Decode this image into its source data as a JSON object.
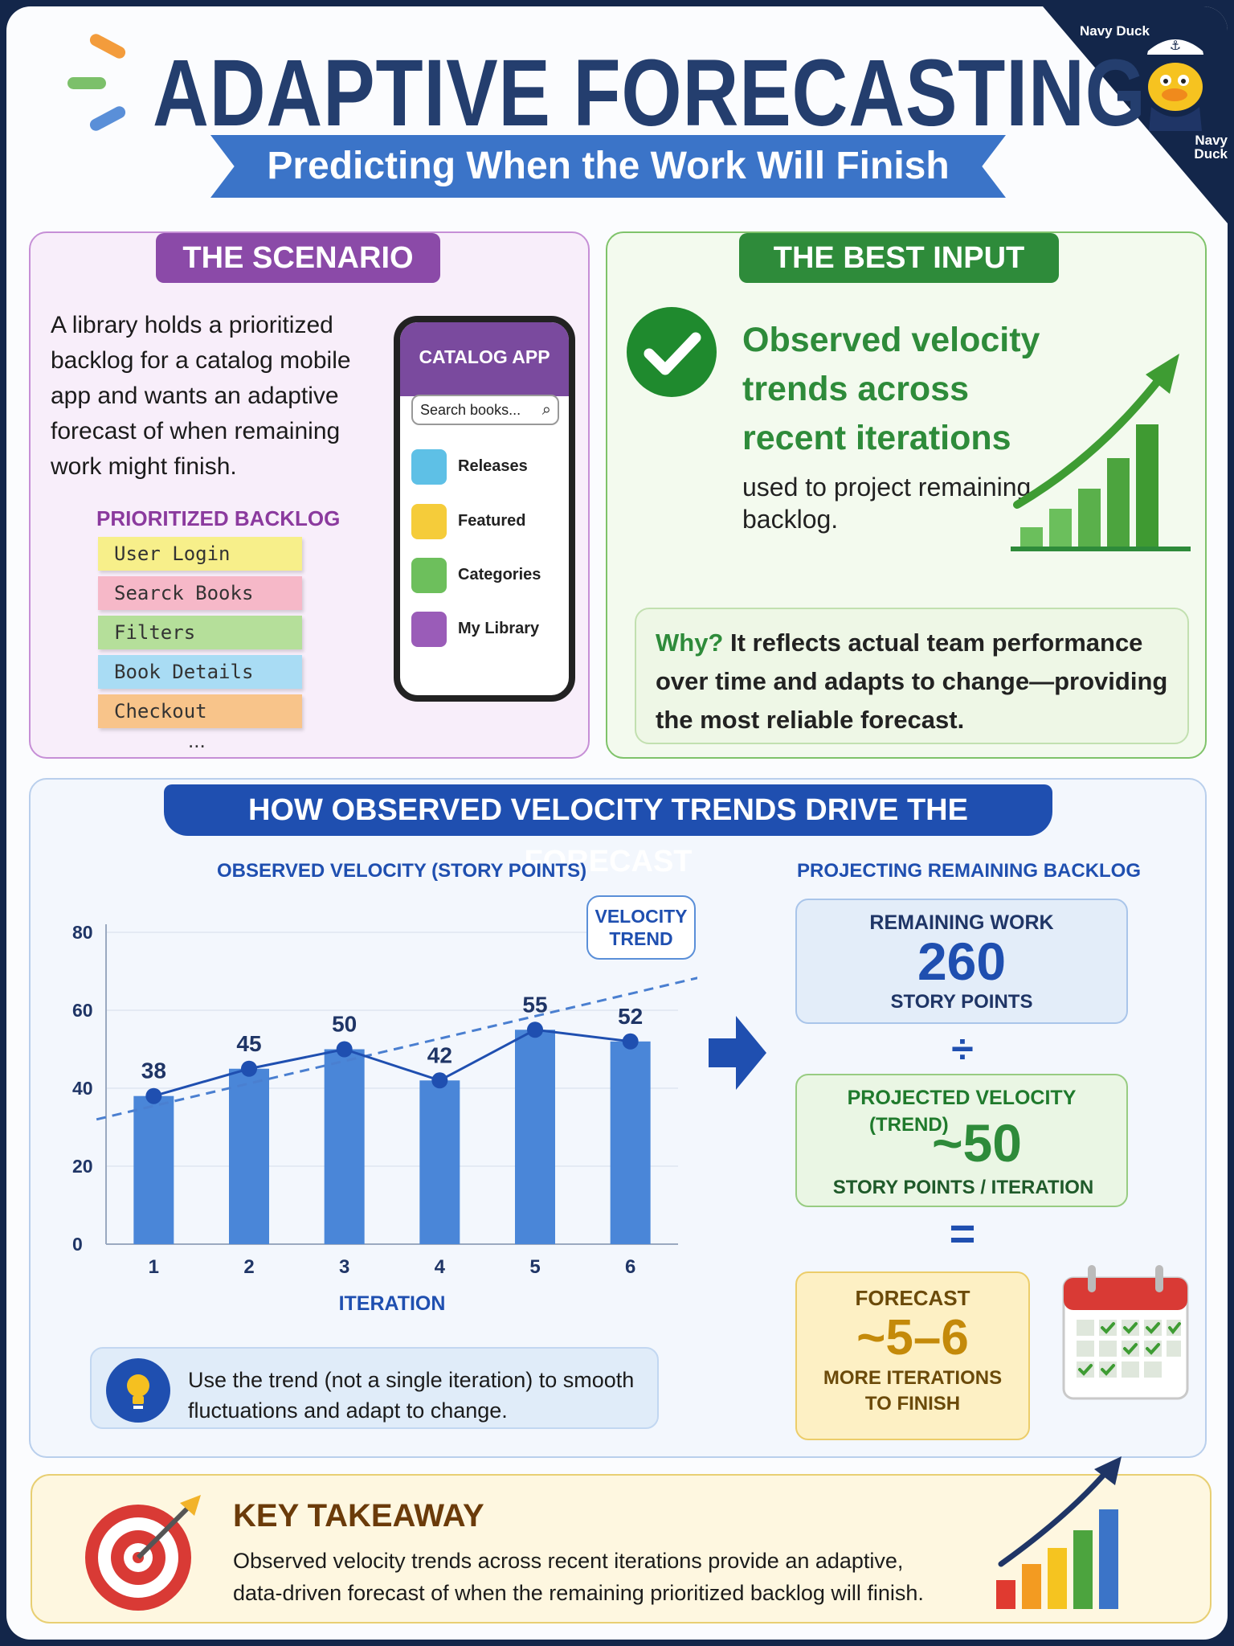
{
  "header": {
    "title": "ADAPTIVE FORECASTING",
    "subtitle": "Predicting When the Work Will Finish",
    "brand_top": "Navy Duck",
    "brand_bottom": "Navy Duck"
  },
  "scenario": {
    "tag": "THE SCENARIO",
    "text": "A library holds a prioritized backlog for a catalog mobile app and wants an adaptive forecast of when remaining work might finish.",
    "backlog_title": "PRIORITIZED BACKLOG",
    "backlog_items": [
      "User Login",
      "Searck Books",
      "Filters",
      "Book Details",
      "Checkout"
    ],
    "backlog_more": "...",
    "phone": {
      "app_title": "CATALOG APP",
      "search_placeholder": "Search books...",
      "menu": [
        "Releases",
        "Featured",
        "Categories",
        "My Library"
      ]
    }
  },
  "best_input": {
    "tag": "THE BEST INPUT",
    "headline": "Observed velocity trends across recent iterations",
    "subtext": "used to project remaining backlog.",
    "why_label": "Why?",
    "why_text": "It reflects actual team performance over time and adapts to change—providing the most reliable forecast."
  },
  "how": {
    "title": "HOW OBSERVED VELOCITY TRENDS DRIVE THE FORECAST",
    "chart_title": "OBSERVED VELOCITY (STORY POINTS)",
    "trend_callout": "VELOCITY TREND",
    "tip_text": "Use the trend (not a single iteration) to smooth fluctuations and adapt to change.",
    "projection_title": "PROJECTING REMAINING BACKLOG",
    "remaining": {
      "label": "REMAINING WORK",
      "value": "260",
      "unit": "STORY POINTS"
    },
    "divide": "÷",
    "projected": {
      "label": "PROJECTED VELOCITY",
      "sublabel": "(TREND)",
      "value": "~50",
      "unit": "STORY POINTS / ITERATION"
    },
    "equals": "=",
    "forecast": {
      "label": "FORECAST",
      "value": "~5–6",
      "unit_line1": "MORE ITERATIONS",
      "unit_line2": "TO FINISH"
    }
  },
  "chart_data": {
    "type": "bar",
    "title": "OBSERVED VELOCITY (STORY POINTS)",
    "xlabel": "ITERATION",
    "ylabel": "",
    "categories": [
      "1",
      "2",
      "3",
      "4",
      "5",
      "6"
    ],
    "values": [
      38,
      45,
      50,
      42,
      55,
      52
    ],
    "yticks": [
      "0",
      "20",
      "40",
      "60",
      "80"
    ],
    "ylim": [
      0,
      80
    ],
    "trend_line": {
      "from": [
        0.4,
        32
      ],
      "to": [
        7,
        70
      ]
    },
    "grid": true,
    "colors": {
      "bar": "#4a86d8",
      "line": "#1f4fb0"
    }
  },
  "takeaway": {
    "title": "KEY TAKEAWAY",
    "text": "Observed velocity trends across recent iterations provide an adaptive, data-driven forecast of when the remaining prioritized backlog will finish."
  }
}
